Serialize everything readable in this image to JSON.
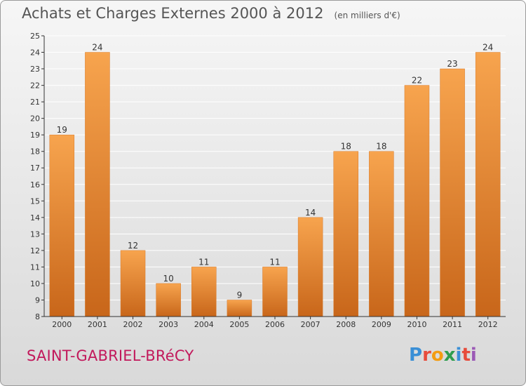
{
  "title": "Achats et Charges Externes 2000 à 2012",
  "unit": "(en milliers d'€)",
  "place": "SAINT-GABRIEL-BRéCY",
  "logo": {
    "text": "Proxiti",
    "letters": [
      {
        "ch": "P",
        "color": "#3a8fd6"
      },
      {
        "ch": "r",
        "color": "#e74c3c"
      },
      {
        "ch": "o",
        "color": "#f39c12"
      },
      {
        "ch": "x",
        "color": "#2e9d4e"
      },
      {
        "ch": "i",
        "color": "#3a8fd6"
      },
      {
        "ch": "t",
        "color": "#e74c3c"
      },
      {
        "ch": "i",
        "color": "#9b59b6"
      }
    ]
  },
  "colors": {
    "bar_light": "#f7a44e",
    "bar_dark": "#c8661a",
    "grid": "#ffffff",
    "axis": "#333333",
    "place": "#c2185b"
  },
  "chart_data": {
    "type": "bar",
    "categories": [
      "2000",
      "2001",
      "2002",
      "2003",
      "2004",
      "2005",
      "2006",
      "2007",
      "2008",
      "2009",
      "2010",
      "2011",
      "2012"
    ],
    "values": [
      19,
      24,
      12,
      10,
      11,
      9,
      11,
      14,
      18,
      18,
      22,
      23,
      24
    ],
    "ylim": [
      8,
      25
    ],
    "yticks": [
      8,
      9,
      10,
      11,
      12,
      13,
      14,
      15,
      16,
      17,
      18,
      19,
      20,
      21,
      22,
      23,
      24,
      25
    ],
    "grid": true,
    "data_labels": true
  }
}
